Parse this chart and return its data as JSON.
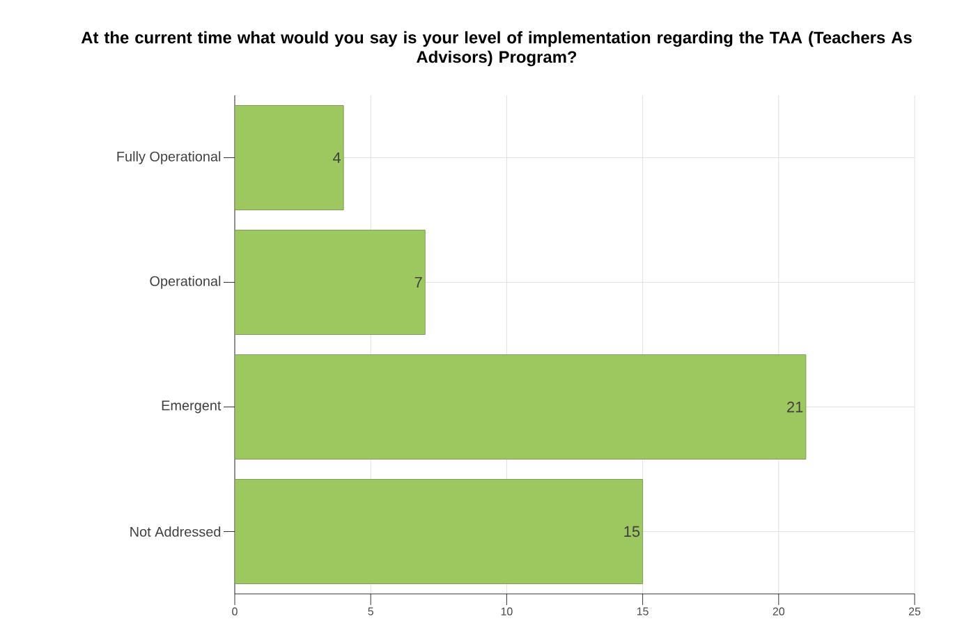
{
  "chart_data": {
    "type": "bar",
    "orientation": "horizontal",
    "title": "At the current time what would you say is your level of implementation regarding the TAA (Teachers As Advisors) Program?",
    "categories": [
      "Fully Operational",
      "Operational",
      "Emergent",
      "Not Addressed"
    ],
    "values": [
      4,
      7,
      21,
      15
    ],
    "color": "#9dc85f",
    "xlim": [
      0,
      25
    ],
    "xticks": [
      0,
      5,
      10,
      15,
      20,
      25
    ],
    "grid": true,
    "data_labels": true
  }
}
